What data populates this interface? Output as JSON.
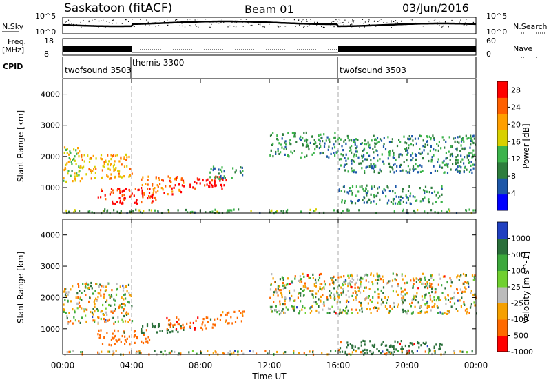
{
  "header": {
    "station": "Saskatoon (fitACF)",
    "beam": "Beam 01",
    "date": "03/Jun/2016"
  },
  "top_panels": {
    "nsky_label": "N.Sky",
    "nsky_ticks": [
      "10^5",
      "10^0"
    ],
    "nsearch_label": "N.Search",
    "nsearch_ticks": [
      "10^5",
      "10^0"
    ],
    "freq_label_1": "Freq.",
    "freq_label_2": "[MHz]",
    "freq_ticks": [
      "18",
      "8"
    ],
    "nave_label": "Nave",
    "nave_ticks": [
      "60",
      "0"
    ],
    "cpid_label": "CPID",
    "cpid_segments": [
      {
        "name": "twofsound 3503",
        "start_hour": 0,
        "end_hour": 4
      },
      {
        "name": "themis 3300",
        "start_hour": 4,
        "end_hour": 16
      },
      {
        "name": "twofsound 3503",
        "start_hour": 16,
        "end_hour": 24
      }
    ]
  },
  "x_axis": {
    "label": "Time UT",
    "ticks": [
      "00:00",
      "04:00",
      "08:00",
      "12:00",
      "16:00",
      "20:00",
      "00:00"
    ],
    "tick_hours": [
      0,
      4,
      8,
      12,
      16,
      20,
      24
    ]
  },
  "chart_data": [
    {
      "type": "heatmap",
      "title": "",
      "ylabel": "Slant Range [km]",
      "xlabel": "",
      "xlim_hours": [
        0,
        24
      ],
      "ylim": [
        180,
        4500
      ],
      "yticks": [
        1000,
        2000,
        3000,
        4000
      ],
      "colorbar": {
        "label": "Power [dB]",
        "ticks": [
          4,
          8,
          12,
          16,
          20,
          24,
          28
        ],
        "range": [
          0,
          30
        ],
        "colors": [
          "#0000ff",
          "#1d57a8",
          "#2e7d3d",
          "#3cb44b",
          "#d8d000",
          "#ff9f00",
          "#ff6000",
          "#ff0000"
        ]
      },
      "echo_regions": [
        {
          "t0": 0.0,
          "t1": 1.0,
          "r0": 1200,
          "r1": 2500,
          "level": 16
        },
        {
          "t0": 1.0,
          "t1": 4.0,
          "r0": 1300,
          "r1": 2100,
          "level": 20
        },
        {
          "t0": 2.0,
          "t1": 5.5,
          "r0": 500,
          "r1": 1000,
          "level": 28
        },
        {
          "t0": 4.5,
          "t1": 7.0,
          "r0": 800,
          "r1": 1400,
          "level": 24
        },
        {
          "t0": 6.5,
          "t1": 9.5,
          "r0": 1000,
          "r1": 1400,
          "level": 29
        },
        {
          "t0": 8.5,
          "t1": 10.5,
          "r0": 1300,
          "r1": 1700,
          "level": 10
        },
        {
          "t0": 12.0,
          "t1": 16.0,
          "r0": 2000,
          "r1": 2800,
          "level": 10
        },
        {
          "t0": 16.0,
          "t1": 24.0,
          "r0": 1500,
          "r1": 2700,
          "level": 9
        },
        {
          "t0": 16.0,
          "t1": 22.0,
          "r0": 500,
          "r1": 1100,
          "level": 10
        },
        {
          "t0": 0.0,
          "t1": 24.0,
          "r0": 200,
          "r1": 330,
          "level": 12
        }
      ]
    },
    {
      "type": "heatmap",
      "title": "",
      "ylabel": "Slant Range [km]",
      "xlabel": "Time UT",
      "xlim_hours": [
        0,
        24
      ],
      "ylim": [
        180,
        4500
      ],
      "yticks": [
        1000,
        2000,
        3000,
        4000
      ],
      "colorbar": {
        "label": "Velocity [m s^-1]",
        "ticks": [
          1000,
          500,
          100,
          25,
          -25,
          -100,
          -500,
          -1000
        ],
        "range": [
          -1000,
          1000
        ],
        "colors": [
          "#2040c0",
          "#2a6f3a",
          "#3ca83c",
          "#70d030",
          "#bbbbbb",
          "#f5a000",
          "#ff6a00",
          "#ff0000"
        ]
      },
      "echo_regions": [
        {
          "t0": 0.0,
          "t1": 4.0,
          "r0": 1200,
          "r1": 2500,
          "level": 0
        },
        {
          "t0": 2.0,
          "t1": 5.0,
          "r0": 500,
          "r1": 1000,
          "level": -300
        },
        {
          "t0": 4.5,
          "t1": 7.0,
          "r0": 900,
          "r1": 1200,
          "level": 300
        },
        {
          "t0": 6.0,
          "t1": 9.0,
          "r0": 1000,
          "r1": 1400,
          "level": -400
        },
        {
          "t0": 9.0,
          "t1": 10.5,
          "r0": 1200,
          "r1": 1600,
          "level": -200
        },
        {
          "t0": 12.0,
          "t1": 24.0,
          "r0": 1500,
          "r1": 2800,
          "level": 0
        },
        {
          "t0": 16.0,
          "t1": 22.0,
          "r0": 250,
          "r1": 650,
          "level": 300
        },
        {
          "t0": 0.0,
          "t1": 24.0,
          "r0": 200,
          "r1": 330,
          "level": 0
        }
      ]
    }
  ]
}
